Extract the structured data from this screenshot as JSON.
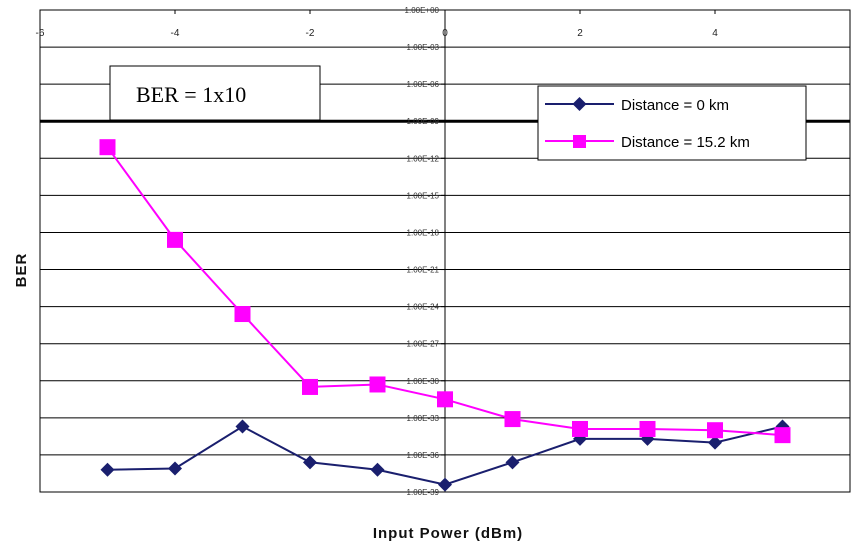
{
  "chart_data": {
    "type": "line",
    "xlabel": "Input Power (dBm)",
    "ylabel": "BER",
    "x_ticks": [
      "-6",
      "-4",
      "-2",
      "0",
      "2",
      "4"
    ],
    "xlim": [
      -6,
      6
    ],
    "y_scale": "log",
    "y_ticks": [
      "1.00E+00",
      "1.00E-03",
      "1.00E-06",
      "1.00E-09",
      "1.00E-12",
      "1.00E-15",
      "1.00E-18",
      "1.00E-21",
      "1.00E-24",
      "1.00E-27",
      "1.00E-30",
      "1.00E-33",
      "1.00E-36",
      "1.00E-39"
    ],
    "y_exponent_range": [
      0,
      -39
    ],
    "grid": "horizontal",
    "legend_position": "top-right",
    "threshold": {
      "label": "BER = 1x10",
      "exponent": -9
    },
    "x": [
      -5,
      -4,
      -3,
      -2,
      -1,
      0,
      1,
      2,
      3,
      4,
      5
    ],
    "series": [
      {
        "name": "Distance = 0 km",
        "color": "#1a1f6e",
        "marker": "diamond",
        "y_exponents": [
          -37.2,
          -37.1,
          -33.7,
          -36.6,
          -37.2,
          -38.4,
          -36.6,
          -34.7,
          -34.7,
          -35.0,
          -33.7
        ]
      },
      {
        "name": "Distance = 15.2 km",
        "color": "#ff00ff",
        "marker": "square",
        "y_exponents": [
          -11.1,
          -18.6,
          -24.6,
          -30.5,
          -30.3,
          -31.5,
          -33.1,
          -33.9,
          -33.9,
          -34.0,
          -34.4
        ]
      }
    ]
  }
}
